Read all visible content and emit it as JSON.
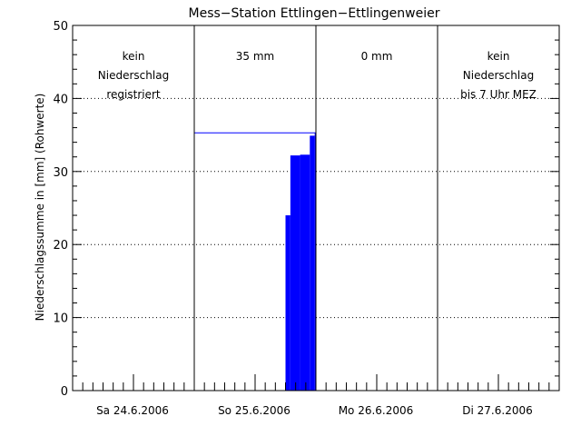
{
  "chart_data": {
    "type": "bar",
    "title": "Mess−Station Ettlingen−Ettlingenweier",
    "ylabel": "Niederschlagssumme in [mm] (Rohwerte)",
    "xlabel": "",
    "ylim": [
      0,
      50
    ],
    "y_ticks": [
      "0",
      "10",
      "20",
      "30",
      "40",
      "50"
    ],
    "y_tick_values": [
      0,
      10,
      20,
      30,
      40,
      50
    ],
    "grid": "horizontal dotted",
    "x_range_days": [
      0,
      4
    ],
    "day_labels": [
      "Sa 24.6.2006",
      "So 25.6.2006",
      "Mo 26.6.2006",
      "Di 27.6.2006"
    ],
    "panels": [
      {
        "lines": [
          "kein",
          "Niederschlag",
          "registriert"
        ]
      },
      {
        "lines": [
          "35 mm"
        ]
      },
      {
        "lines": [
          "0 mm"
        ]
      },
      {
        "lines": [
          "kein",
          "Niederschlag",
          "bis 7 Uhr MEZ"
        ]
      }
    ],
    "series": [
      {
        "x_day": [
          1.75,
          1.79,
          1.87,
          1.95,
          1.99
        ],
        "values": [
          24.0,
          32.2,
          32.3,
          34.9,
          35.3
        ]
      }
    ],
    "x_end_day": 2.0,
    "total_line": {
      "value": 35.3,
      "x_start_day": 1.0,
      "x_end_day": 2.0
    },
    "colors": {
      "bars": "#0000ff",
      "total_line": "#0000ff",
      "axes": "#000000"
    }
  }
}
